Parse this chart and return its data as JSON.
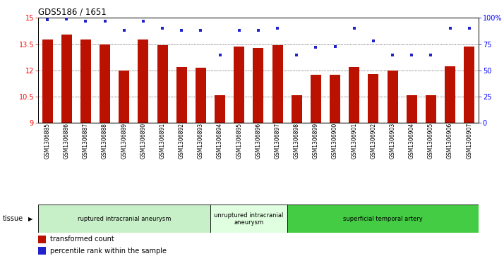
{
  "title": "GDS5186 / 1651",
  "samples": [
    "GSM1306885",
    "GSM1306886",
    "GSM1306887",
    "GSM1306888",
    "GSM1306889",
    "GSM1306890",
    "GSM1306891",
    "GSM1306892",
    "GSM1306893",
    "GSM1306894",
    "GSM1306895",
    "GSM1306896",
    "GSM1306897",
    "GSM1306898",
    "GSM1306899",
    "GSM1306900",
    "GSM1306901",
    "GSM1306902",
    "GSM1306903",
    "GSM1306904",
    "GSM1306905",
    "GSM1306906",
    "GSM1306907"
  ],
  "bar_values": [
    13.75,
    14.05,
    13.75,
    13.5,
    12.0,
    13.75,
    13.45,
    12.2,
    12.15,
    10.6,
    13.35,
    13.3,
    13.45,
    10.6,
    11.75,
    11.75,
    12.2,
    11.8,
    12.0,
    10.6,
    10.6,
    12.25,
    13.35
  ],
  "dot_values": [
    98,
    99,
    97,
    97,
    88,
    97,
    90,
    88,
    88,
    65,
    88,
    88,
    90,
    65,
    72,
    73,
    90,
    78,
    65,
    65,
    65,
    90,
    90
  ],
  "ylim_left": [
    9,
    15
  ],
  "ylim_right": [
    0,
    100
  ],
  "yticks_left": [
    9,
    10.5,
    12,
    13.5,
    15
  ],
  "yticks_right": [
    0,
    25,
    50,
    75,
    100
  ],
  "ytick_labels_right": [
    "0",
    "25",
    "50",
    "75",
    "100%"
  ],
  "bar_color": "#bb1100",
  "dot_color": "#2222cc",
  "grid_color": "#000000",
  "bg_color": "#ffffff",
  "group_colors": [
    "#c8f0c8",
    "#e0ffe0",
    "#44cc44"
  ],
  "groups": [
    {
      "label": "ruptured intracranial aneurysm",
      "start": 0,
      "end": 8
    },
    {
      "label": "unruptured intracranial\naneurysm",
      "start": 9,
      "end": 12
    },
    {
      "label": "superficial temporal artery",
      "start": 13,
      "end": 22
    }
  ],
  "legend_bar_label": "transformed count",
  "legend_dot_label": "percentile rank within the sample",
  "tissue_label": "tissue"
}
